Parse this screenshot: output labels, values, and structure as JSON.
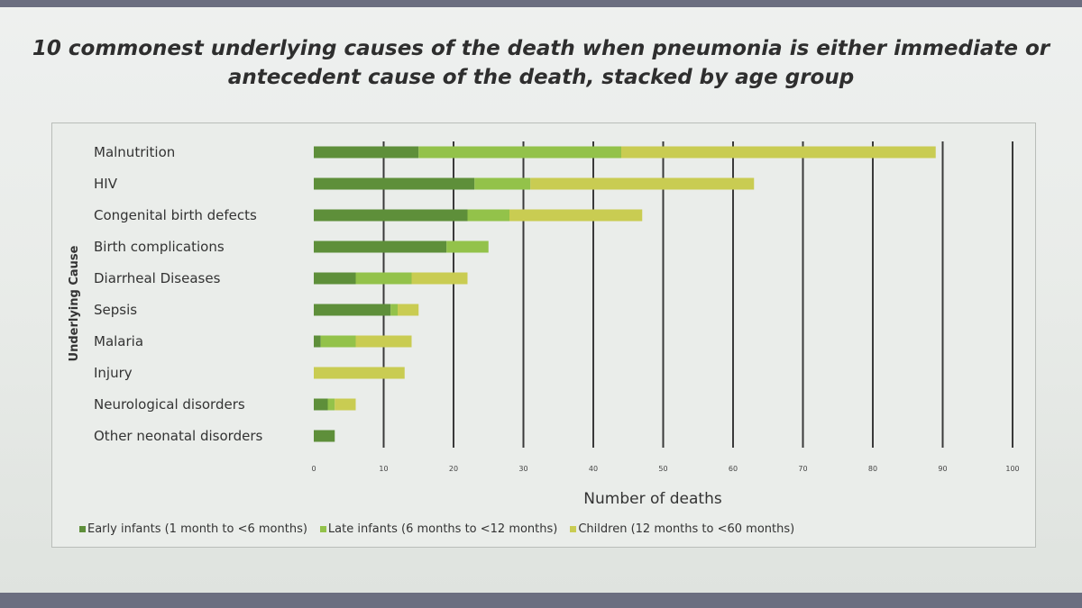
{
  "slide": {
    "title": "10 commonest underlying causes of the death when pneumonia is either immediate or antecedent cause of the death, stacked by age group"
  },
  "colors": {
    "early": "#5e8f3a",
    "late": "#93c24a",
    "children": "#c9cc52",
    "gridline": "#3a3a3a",
    "text": "#333333"
  },
  "chart_data": {
    "type": "bar",
    "orientation": "horizontal",
    "stacked": true,
    "title": "",
    "xlabel": "Number of deaths",
    "ylabel": "Underlying Cause",
    "xlim": [
      0,
      100
    ],
    "xticks": [
      0,
      10,
      20,
      30,
      40,
      50,
      60,
      70,
      80,
      90,
      100
    ],
    "grid": true,
    "legend_position": "bottom",
    "categories": [
      "Malnutrition",
      "HIV",
      "Congenital birth defects",
      "Birth complications",
      "Diarrheal Diseases",
      "Sepsis",
      "Malaria",
      "Injury",
      "Neurological disorders",
      "Other neonatal disorders"
    ],
    "series": [
      {
        "name": "Early infants (1 month to <6 months)",
        "color": "#5e8f3a",
        "values": [
          15,
          23,
          22,
          19,
          6,
          11,
          1,
          0,
          2,
          3
        ]
      },
      {
        "name": "Late infants (6 months to <12 months)",
        "color": "#93c24a",
        "values": [
          29,
          8,
          6,
          6,
          8,
          1,
          5,
          0,
          1,
          0
        ]
      },
      {
        "name": "Children (12 months to <60 months)",
        "color": "#c9cc52",
        "values": [
          45,
          32,
          19,
          0,
          8,
          3,
          8,
          13,
          3,
          0
        ]
      }
    ]
  }
}
